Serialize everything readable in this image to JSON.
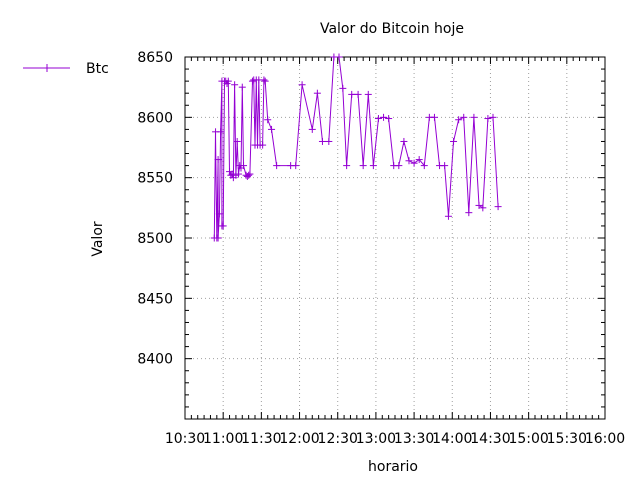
{
  "chart_data": {
    "type": "line",
    "title": "Valor do Bitcoin hoje",
    "xlabel": "horario",
    "ylabel": "Valor",
    "x_ticks": [
      "10:30",
      "11:00",
      "11:30",
      "12:00",
      "12:30",
      "13:00",
      "13:30",
      "14:00",
      "14:30",
      "15:00",
      "15:30",
      "16:00"
    ],
    "y_ticks": [
      8400,
      8450,
      8500,
      8550,
      8600,
      8650
    ],
    "xlim": [
      "10:30",
      "16:00"
    ],
    "ylim": [
      8350,
      8650
    ],
    "grid": true,
    "legend_position": "top-left",
    "color": "#9400D3",
    "series": [
      {
        "name": "Btc",
        "points": [
          [
            "10:53",
            8500
          ],
          [
            "10:54",
            8588
          ],
          [
            "10:55",
            8500
          ],
          [
            "10:56",
            8565
          ],
          [
            "10:56",
            8500
          ],
          [
            "10:57",
            8520
          ],
          [
            "10:58",
            8588
          ],
          [
            "10:59",
            8630
          ],
          [
            "10:59",
            8510
          ],
          [
            "11:00",
            8510
          ],
          [
            "11:01",
            8630
          ],
          [
            "11:02",
            8630
          ],
          [
            "11:03",
            8628
          ],
          [
            "11:04",
            8630
          ],
          [
            "11:05",
            8555
          ],
          [
            "11:06",
            8552
          ],
          [
            "11:07",
            8553
          ],
          [
            "11:08",
            8550
          ],
          [
            "11:09",
            8627
          ],
          [
            "11:10",
            8552
          ],
          [
            "11:11",
            8580
          ],
          [
            "11:12",
            8553
          ],
          [
            "11:13",
            8560
          ],
          [
            "11:14",
            8558
          ],
          [
            "11:15",
            8625
          ],
          [
            "11:16",
            8560
          ],
          [
            "11:18",
            8552
          ],
          [
            "11:19",
            8551
          ],
          [
            "11:20",
            8552
          ],
          [
            "11:21",
            8553
          ],
          [
            "11:23",
            8630
          ],
          [
            "11:24",
            8631
          ],
          [
            "11:25",
            8577
          ],
          [
            "11:26",
            8631
          ],
          [
            "11:27",
            8577
          ],
          [
            "11:28",
            8631
          ],
          [
            "11:29",
            8577
          ],
          [
            "11:31",
            8577
          ],
          [
            "11:32",
            8631
          ],
          [
            "11:33",
            8630
          ],
          [
            "11:35",
            8598
          ],
          [
            "11:38",
            8590
          ],
          [
            "11:42",
            8560
          ],
          [
            "11:53",
            8560
          ],
          [
            "11:57",
            8560
          ],
          [
            "12:02",
            8627
          ],
          [
            "12:10",
            8590
          ],
          [
            "12:14",
            8620
          ],
          [
            "12:18",
            8580
          ],
          [
            "12:23",
            8580
          ],
          [
            "12:27",
            8650
          ],
          [
            "12:31",
            8650
          ],
          [
            "12:34",
            8624
          ],
          [
            "12:37",
            8560
          ],
          [
            "12:41",
            8619
          ],
          [
            "12:46",
            8619
          ],
          [
            "12:50",
            8560
          ],
          [
            "12:54",
            8619
          ],
          [
            "12:58",
            8560
          ],
          [
            "13:02",
            8599
          ],
          [
            "13:06",
            8600
          ],
          [
            "13:10",
            8599
          ],
          [
            "13:14",
            8560
          ],
          [
            "13:18",
            8560
          ],
          [
            "13:22",
            8580
          ],
          [
            "13:26",
            8564
          ],
          [
            "13:30",
            8562
          ],
          [
            "13:34",
            8565
          ],
          [
            "13:38",
            8560
          ],
          [
            "13:42",
            8600
          ],
          [
            "13:46",
            8600
          ],
          [
            "13:50",
            8560
          ],
          [
            "13:54",
            8560
          ],
          [
            "13:57",
            8518
          ],
          [
            "14:01",
            8580
          ],
          [
            "14:05",
            8598
          ],
          [
            "14:09",
            8600
          ],
          [
            "14:13",
            8521
          ],
          [
            "14:17",
            8600
          ],
          [
            "14:21",
            8527
          ],
          [
            "14:24",
            8525
          ],
          [
            "14:28",
            8599
          ],
          [
            "14:32",
            8600
          ],
          [
            "14:36",
            8526
          ]
        ]
      }
    ]
  }
}
